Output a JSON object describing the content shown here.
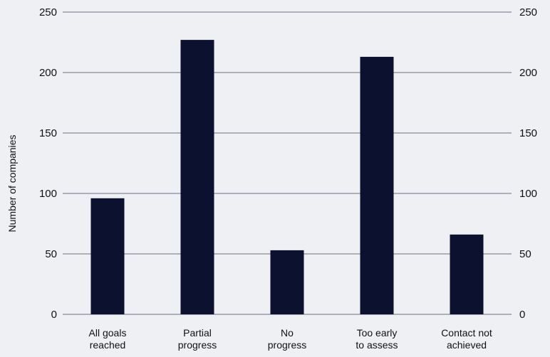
{
  "chart_data": {
    "type": "bar",
    "categories": [
      [
        "All goals",
        "reached"
      ],
      [
        "Partial",
        "progress"
      ],
      [
        "No",
        "progress"
      ],
      [
        "Too early",
        "to assess"
      ],
      [
        "Contact not",
        "achieved"
      ]
    ],
    "values": [
      96,
      227,
      53,
      213,
      66
    ],
    "ylabel": "Number of companies",
    "xlabel": "",
    "ylim": [
      0,
      250
    ],
    "yticks": [
      0,
      50,
      100,
      150,
      200,
      250
    ],
    "grid": true,
    "secondary_y_axis": true,
    "bar_color": "#0c1130",
    "background": "#eff0f4"
  }
}
